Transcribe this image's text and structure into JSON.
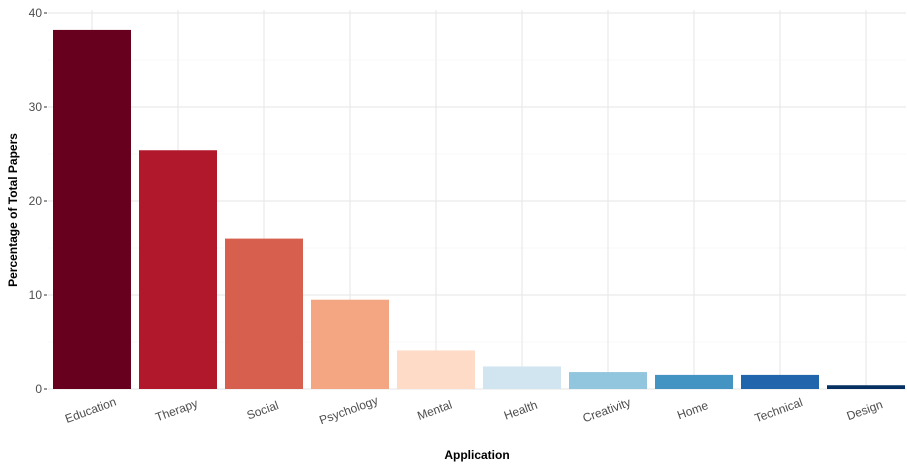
{
  "chart_data": {
    "type": "bar",
    "title": "",
    "xlabel": "Application",
    "ylabel": "Percentage of Total Papers",
    "categories": [
      "Education",
      "Therapy",
      "Social",
      "Psychology",
      "Mental",
      "Health",
      "Creativity",
      "Home",
      "Technical",
      "Design"
    ],
    "values": [
      38.2,
      25.4,
      16.0,
      9.5,
      4.1,
      2.4,
      1.8,
      1.5,
      1.5,
      0.4
    ],
    "colors": [
      "#67001f",
      "#b2182b",
      "#d6604d",
      "#f4a582",
      "#fddbc7",
      "#d1e5f0",
      "#92c5de",
      "#4393c3",
      "#2166ac",
      "#053061"
    ],
    "yticks": [
      0,
      10,
      20,
      30,
      40
    ],
    "ylim": [
      0,
      40
    ],
    "grid": true,
    "legend": "none"
  }
}
